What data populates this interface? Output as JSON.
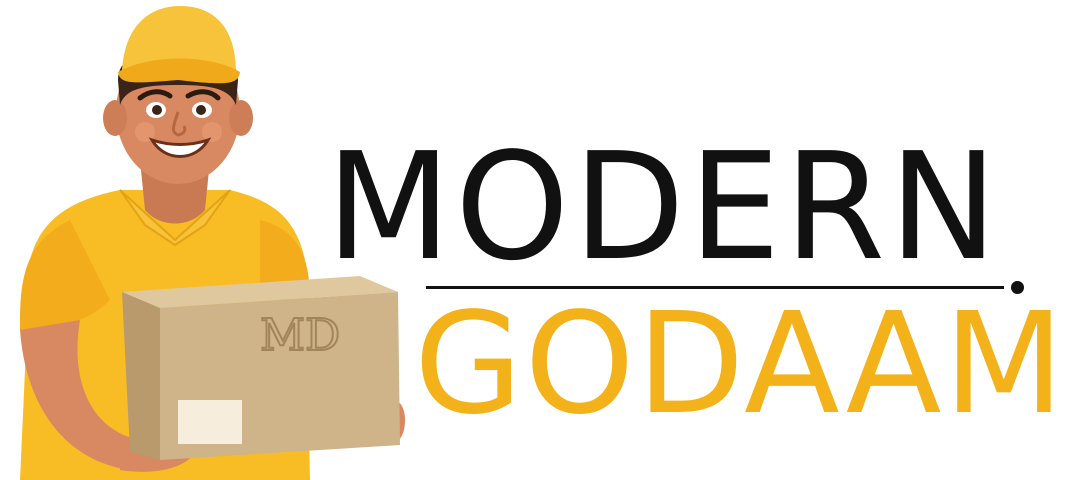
{
  "brand": {
    "line1": "MODERN",
    "line2": "GODAAM",
    "box_monogram": "MD"
  },
  "colors": {
    "primary_text": "#111111",
    "accent": "#f4b21a",
    "shirt": "#f8bd25",
    "cap": "#f6c33a",
    "skin": "#d98961",
    "box": "#cfb48a",
    "box_label": "#f7eddc"
  },
  "icons": {
    "mascot": "delivery-man-icon",
    "box": "cardboard-box-icon"
  }
}
